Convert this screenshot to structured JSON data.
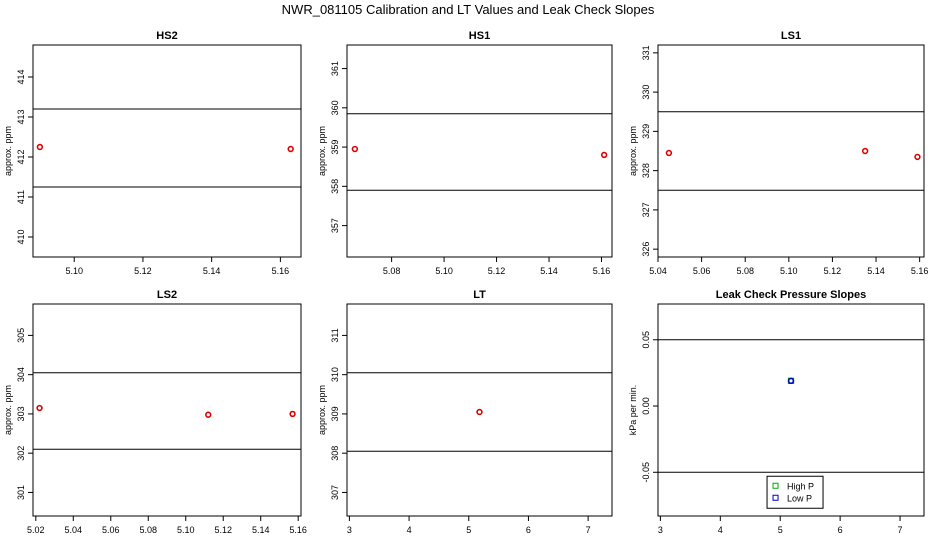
{
  "title": "NWR_081105  Calibration and LT Values and Leak Check Slopes",
  "chart_data": [
    {
      "type": "scatter",
      "title": "HS2",
      "ylabel": "approx. ppm",
      "xlim": [
        5.088,
        5.166
      ],
      "ylim": [
        409.5,
        414.8
      ],
      "x_ticks": [
        "5.10",
        "5.12",
        "5.14",
        "5.16"
      ],
      "y_ticks": [
        "410",
        "411",
        "412",
        "413",
        "414"
      ],
      "hlines": [
        413.2,
        411.25
      ],
      "series": [
        {
          "color": "#dd0000",
          "marker": "circle",
          "x": [
            5.09,
            5.163
          ],
          "y": [
            412.25,
            412.2
          ]
        }
      ]
    },
    {
      "type": "scatter",
      "title": "HS1",
      "ylabel": "approx. ppm",
      "xlim": [
        5.063,
        5.164
      ],
      "ylim": [
        356.2,
        361.6
      ],
      "x_ticks": [
        "5.08",
        "5.10",
        "5.12",
        "5.14",
        "5.16"
      ],
      "y_ticks": [
        "357",
        "358",
        "359",
        "360",
        "361"
      ],
      "hlines": [
        359.85,
        357.9
      ],
      "series": [
        {
          "color": "#dd0000",
          "marker": "circle",
          "x": [
            5.066,
            5.161
          ],
          "y": [
            358.95,
            358.8
          ]
        }
      ]
    },
    {
      "type": "scatter",
      "title": "LS1",
      "ylabel": "approx. ppm",
      "xlim": [
        5.04,
        5.162
      ],
      "ylim": [
        325.8,
        331.2
      ],
      "x_ticks": [
        "5.04",
        "5.06",
        "5.08",
        "5.10",
        "5.12",
        "5.14",
        "5.16"
      ],
      "y_ticks": [
        "326",
        "327",
        "328",
        "329",
        "330",
        "331"
      ],
      "hlines": [
        329.5,
        327.5
      ],
      "series": [
        {
          "color": "#dd0000",
          "marker": "circle",
          "x": [
            5.045,
            5.135,
            5.159
          ],
          "y": [
            328.45,
            328.5,
            328.35
          ]
        }
      ]
    },
    {
      "type": "scatter",
      "title": "LS2",
      "ylabel": "approx. ppm",
      "xlim": [
        5.0185,
        5.1615
      ],
      "ylim": [
        300.4,
        305.8
      ],
      "x_ticks": [
        "5.02",
        "5.04",
        "5.06",
        "5.08",
        "5.10",
        "5.12",
        "5.14",
        "5.16"
      ],
      "y_ticks": [
        "301",
        "302",
        "303",
        "304",
        "305"
      ],
      "hlines": [
        304.05,
        302.1
      ],
      "series": [
        {
          "color": "#dd0000",
          "marker": "circle",
          "x": [
            5.022,
            5.112,
            5.157
          ],
          "y": [
            303.15,
            302.98,
            303.0
          ]
        }
      ]
    },
    {
      "type": "scatter",
      "title": "LT",
      "ylabel": "approx. ppm",
      "xlim": [
        2.96,
        7.4
      ],
      "ylim": [
        306.4,
        311.8
      ],
      "x_ticks": [
        "3",
        "4",
        "5",
        "6",
        "7"
      ],
      "y_ticks": [
        "307",
        "308",
        "309",
        "310",
        "311"
      ],
      "hlines": [
        310.05,
        308.05
      ],
      "series": [
        {
          "color": "#dd0000",
          "marker": "circle",
          "x": [
            5.18
          ],
          "y": [
            309.05
          ]
        }
      ]
    },
    {
      "type": "scatter",
      "title": "Leak Check Pressure Slopes",
      "ylabel": "kPa per min.",
      "xlim": [
        2.96,
        7.4
      ],
      "ylim": [
        -0.083,
        0.077
      ],
      "x_ticks": [
        "3",
        "4",
        "5",
        "6",
        "7"
      ],
      "y_ticks": [
        "-0.05",
        "0.00",
        "0.05"
      ],
      "hlines": [
        0.05,
        -0.05
      ],
      "series": [
        {
          "name": "High P",
          "color": "#00aa00",
          "marker": "square",
          "x": [
            5.18
          ],
          "y": [
            0.019
          ]
        },
        {
          "name": "Low P",
          "color": "#0000cc",
          "marker": "circle",
          "x": [
            5.18
          ],
          "y": [
            0.019
          ]
        }
      ],
      "legend": "bottom-center"
    }
  ]
}
